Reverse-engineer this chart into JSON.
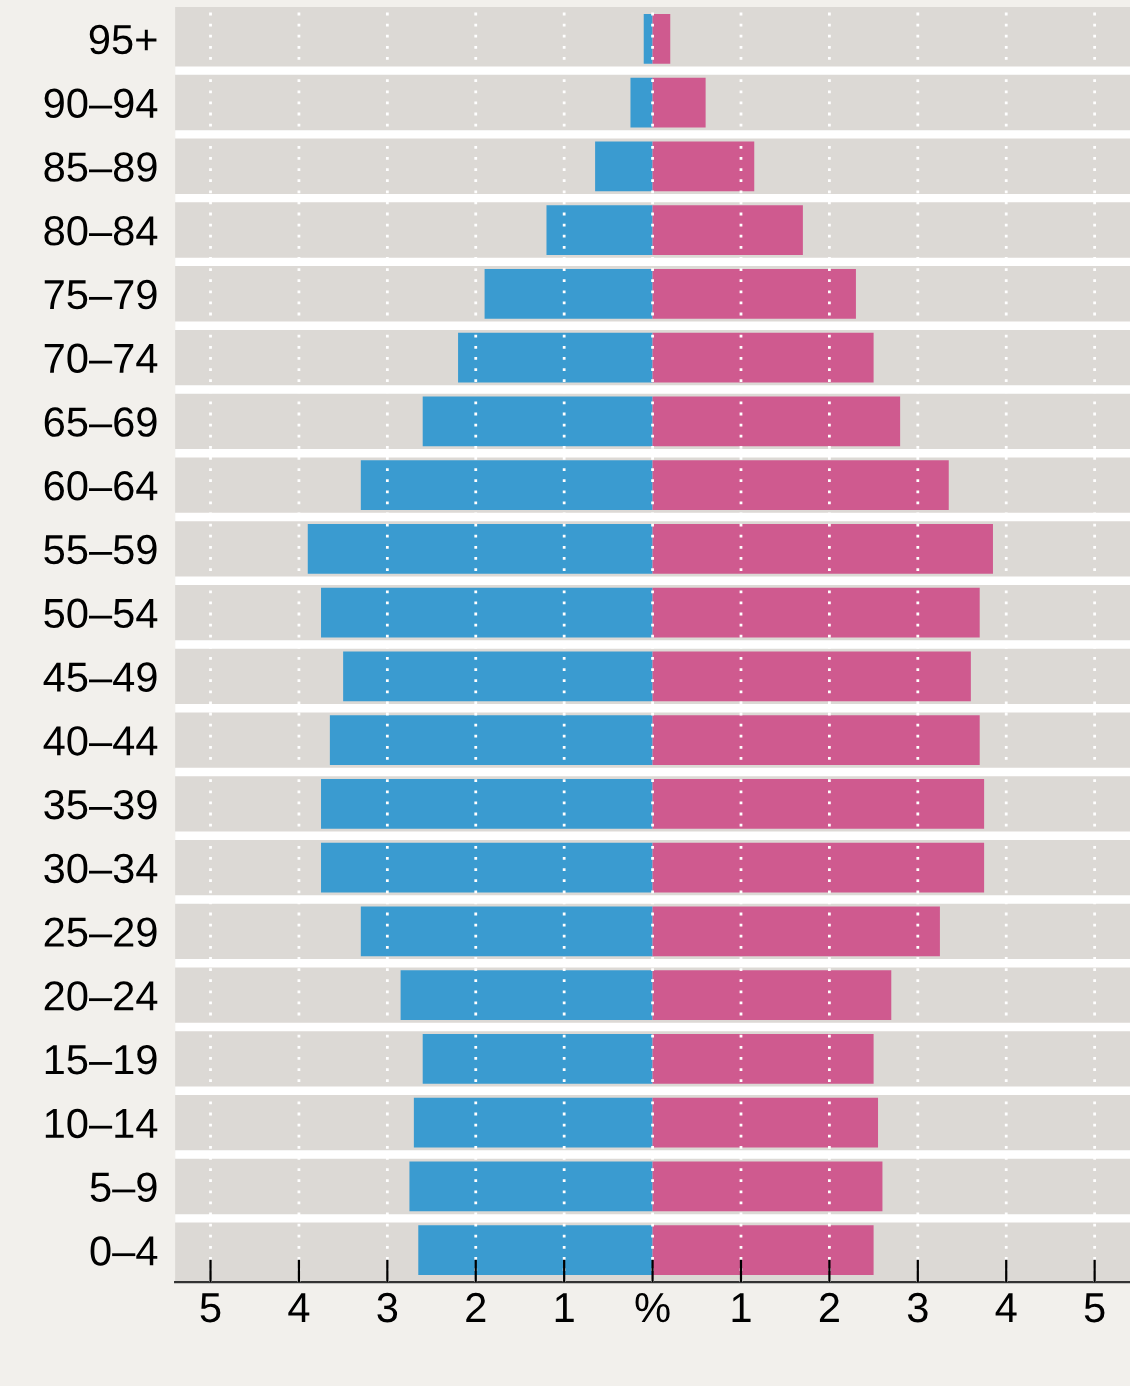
{
  "chart_data": {
    "type": "bar",
    "orientation": "horizontal",
    "stacked": true,
    "categories": [
      "95+",
      "90–94",
      "85–89",
      "80–84",
      "75–79",
      "70–74",
      "65–69",
      "60–64",
      "55–59",
      "50–54",
      "45–49",
      "40–44",
      "35–39",
      "30–34",
      "25–29",
      "20–24",
      "15–19",
      "10–14",
      "5–9",
      "0–4"
    ],
    "series": [
      {
        "color": "#3a9bd0",
        "values": [
          -0.1,
          -0.25,
          -0.65,
          -1.2,
          -1.9,
          -2.2,
          -2.6,
          -3.3,
          -3.9,
          -3.75,
          -3.5,
          -3.65,
          -3.75,
          -3.75,
          -3.3,
          -2.85,
          -2.6,
          -2.7,
          -2.75,
          -2.65
        ]
      },
      {
        "color": "#cf5a8f",
        "values": [
          0.2,
          0.6,
          1.15,
          1.7,
          2.3,
          2.5,
          2.8,
          3.35,
          3.85,
          3.7,
          3.6,
          3.7,
          3.75,
          3.75,
          3.25,
          2.7,
          2.5,
          2.55,
          2.6,
          2.5
        ]
      }
    ],
    "xlim": [
      -5.4,
      5.4
    ],
    "xticks": [
      {
        "value": -5,
        "label": "5"
      },
      {
        "value": -4,
        "label": "4"
      },
      {
        "value": -3,
        "label": "3"
      },
      {
        "value": -2,
        "label": "2"
      },
      {
        "value": -1,
        "label": "1"
      },
      {
        "value": 0,
        "label": "%"
      },
      1,
      2,
      3,
      4,
      5
    ],
    "grid": "x"
  }
}
